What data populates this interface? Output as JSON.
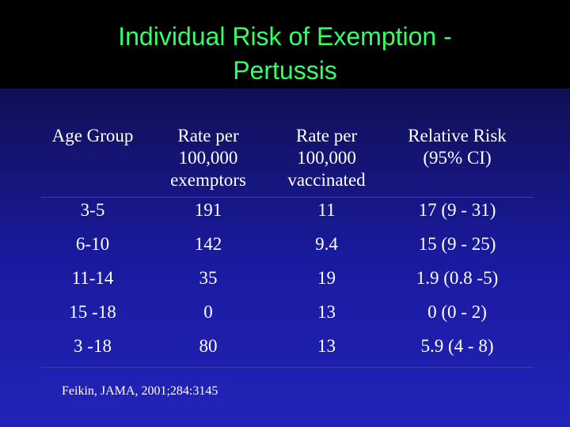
{
  "slide": {
    "title_line1": "Individual Risk of Exemption -",
    "title_line2": "Pertussis",
    "title_color": "#33ff66",
    "background_color": "#1a1aa0"
  },
  "table": {
    "headers": [
      [
        "Age Group"
      ],
      [
        "Rate per",
        "100,000",
        "exemptors"
      ],
      [
        "Rate per",
        "100,000",
        "vaccinated"
      ],
      [
        "Relative Risk",
        "(95% CI)"
      ]
    ],
    "rows": [
      [
        "3-5",
        "191",
        "11",
        "17 (9 - 31)"
      ],
      [
        "6-10",
        "142",
        "9.4",
        "15 (9 - 25)"
      ],
      [
        "11-14",
        "35",
        "19",
        "1.9 (0.8 -5)"
      ],
      [
        "15 -18",
        "0",
        "13",
        "0 (0 - 2)"
      ],
      [
        "3 -18",
        "80",
        "13",
        "5.9 (4 - 8)"
      ]
    ]
  },
  "citation": "Feikin, JAMA, 2001;284:3145"
}
